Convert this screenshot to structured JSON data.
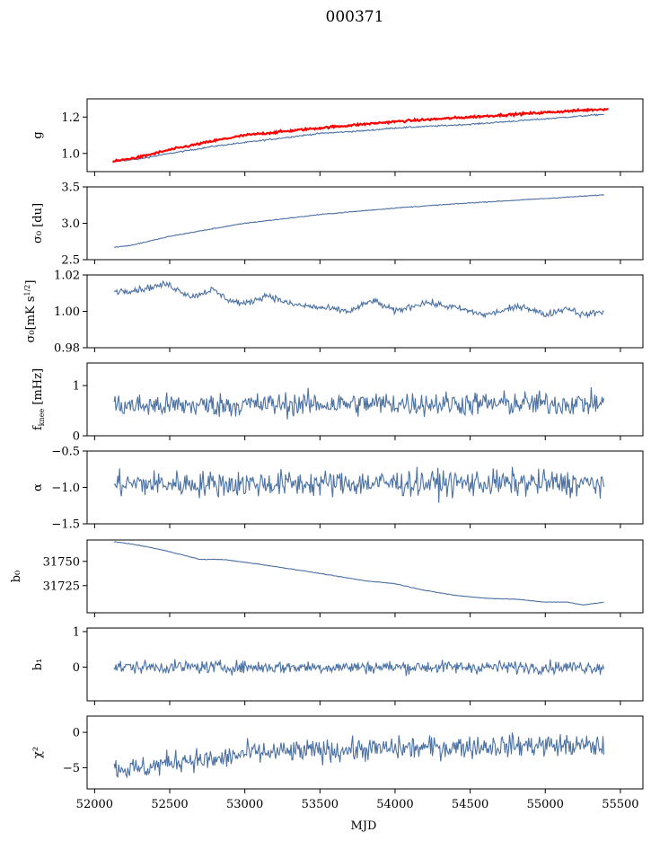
{
  "figure": {
    "title": "000371",
    "xlabel": "MJD"
  },
  "colors": {
    "series": "#4c72a4",
    "fit": "#ff0000",
    "axes": "#000000"
  },
  "xaxis": {
    "lim": [
      51950,
      55650
    ],
    "ticks": [
      52000,
      52500,
      53000,
      53500,
      54000,
      54500,
      55000,
      55500
    ]
  },
  "chart_data": [
    {
      "type": "line",
      "key": "g",
      "ylabel": "g",
      "ylim": [
        0.9,
        1.3
      ],
      "yticks": [
        1.0,
        1.2
      ],
      "yticklabels": [
        "1.0",
        "1.2"
      ],
      "series": [
        {
          "color": "#4c72a4",
          "noise": 0.002,
          "points": [
            [
              52120,
              0.955
            ],
            [
              52300,
              0.97
            ],
            [
              52500,
              1.0
            ],
            [
              52800,
              1.04
            ],
            [
              53000,
              1.06
            ],
            [
              53500,
              1.11
            ],
            [
              53800,
              1.125
            ],
            [
              54000,
              1.14
            ],
            [
              54500,
              1.16
            ],
            [
              55000,
              1.19
            ],
            [
              55390,
              1.215
            ]
          ]
        },
        {
          "color": "#ff0000",
          "noise": 0.003,
          "width": 2.2,
          "points": [
            [
              52120,
              0.955
            ],
            [
              52300,
              0.98
            ],
            [
              52500,
              1.02
            ],
            [
              52800,
              1.07
            ],
            [
              53000,
              1.1
            ],
            [
              53500,
              1.14
            ],
            [
              54000,
              1.175
            ],
            [
              54500,
              1.2
            ],
            [
              55000,
              1.225
            ],
            [
              55420,
              1.245
            ]
          ]
        }
      ]
    },
    {
      "type": "line",
      "key": "sigma_du",
      "ylabel": "σ₀ [du]",
      "ylim": [
        2.5,
        3.5
      ],
      "yticks": [
        2.5,
        3.0,
        3.5
      ],
      "yticklabels": [
        "2.5",
        "3.0",
        "3.5"
      ],
      "series": [
        {
          "color": "#4c72a4",
          "noise": 0.003,
          "points": [
            [
              52130,
              2.67
            ],
            [
              52250,
              2.7
            ],
            [
              52500,
              2.82
            ],
            [
              52800,
              2.93
            ],
            [
              53000,
              3.0
            ],
            [
              53500,
              3.12
            ],
            [
              54000,
              3.21
            ],
            [
              54500,
              3.28
            ],
            [
              55000,
              3.34
            ],
            [
              55390,
              3.39
            ]
          ]
        }
      ]
    },
    {
      "type": "line",
      "key": "sigma_mk",
      "ylabel": "σ₀[mK s^1/2]",
      "ylim": [
        0.98,
        1.02
      ],
      "yticks": [
        0.98,
        1.0,
        1.02
      ],
      "yticklabels": [
        "0.98",
        "1.00",
        "1.02"
      ],
      "series": [
        {
          "color": "#4c72a4",
          "noise": 0.0009,
          "points": [
            [
              52130,
              1.011
            ],
            [
              52300,
              1.012
            ],
            [
              52480,
              1.015
            ],
            [
              52650,
              1.008
            ],
            [
              52780,
              1.012
            ],
            [
              52900,
              1.006
            ],
            [
              53000,
              1.004
            ],
            [
              53150,
              1.009
            ],
            [
              53300,
              1.004
            ],
            [
              53500,
              1.002
            ],
            [
              53700,
              1.0
            ],
            [
              53850,
              1.006
            ],
            [
              54000,
              1.0
            ],
            [
              54200,
              1.005
            ],
            [
              54400,
              1.002
            ],
            [
              54600,
              0.998
            ],
            [
              54850,
              1.003
            ],
            [
              55000,
              0.998
            ],
            [
              55150,
              1.002
            ],
            [
              55250,
              0.998
            ],
            [
              55390,
              1.0
            ]
          ]
        }
      ]
    },
    {
      "type": "line",
      "key": "fknee",
      "ylabel": "f_knee [mHz]",
      "ylim": [
        0,
        1.45
      ],
      "yticks": [
        0,
        1
      ],
      "yticklabels": [
        "0",
        "1"
      ],
      "series": [
        {
          "color": "#4c72a4",
          "noise": 0.12,
          "points": [
            [
              52130,
              0.6
            ],
            [
              52500,
              0.6
            ],
            [
              53000,
              0.62
            ],
            [
              54000,
              0.64
            ],
            [
              55000,
              0.64
            ],
            [
              55390,
              0.65
            ]
          ]
        }
      ]
    },
    {
      "type": "line",
      "key": "alpha",
      "ylabel": "α",
      "ylim": [
        -1.5,
        -0.5
      ],
      "yticks": [
        -1.5,
        -1.0,
        -0.5
      ],
      "yticklabels": [
        "−1.5",
        "−1.0",
        "−0.5"
      ],
      "series": [
        {
          "color": "#4c72a4",
          "noise": 0.09,
          "points": [
            [
              52130,
              -0.95
            ],
            [
              53000,
              -0.95
            ],
            [
              54000,
              -0.94
            ],
            [
              55000,
              -0.94
            ],
            [
              55390,
              -0.95
            ]
          ]
        }
      ]
    },
    {
      "type": "line",
      "key": "b0",
      "ylabel": "b₀",
      "ylim": [
        31697,
        31772
      ],
      "yticks": [
        31725,
        31750
      ],
      "yticklabels": [
        "31725",
        "31750"
      ],
      "series": [
        {
          "color": "#4c72a4",
          "noise": 0.15,
          "points": [
            [
              52130,
              31770
            ],
            [
              52200,
              31769
            ],
            [
              52350,
              31765
            ],
            [
              52500,
              31760
            ],
            [
              52700,
              31752
            ],
            [
              52850,
              31752
            ],
            [
              53000,
              31749
            ],
            [
              53100,
              31747
            ],
            [
              53400,
              31740
            ],
            [
              53600,
              31735
            ],
            [
              53800,
              31730
            ],
            [
              54000,
              31727
            ],
            [
              54200,
              31720
            ],
            [
              54400,
              31715
            ],
            [
              54600,
              31712
            ],
            [
              54800,
              31711
            ],
            [
              55000,
              31708
            ],
            [
              55150,
              31708
            ],
            [
              55250,
              31705
            ],
            [
              55390,
              31708
            ]
          ]
        }
      ]
    },
    {
      "type": "line",
      "key": "b1",
      "ylabel": "b₁",
      "ylim": [
        -0.95,
        1.1
      ],
      "yticks": [
        0,
        1
      ],
      "yticklabels": [
        "0",
        "1"
      ],
      "series": [
        {
          "color": "#4c72a4",
          "noise": 0.09,
          "points": [
            [
              52130,
              0.0
            ],
            [
              53000,
              0.0
            ],
            [
              54000,
              0.0
            ],
            [
              55000,
              0.0
            ],
            [
              55390,
              0.0
            ]
          ]
        }
      ]
    },
    {
      "type": "line",
      "key": "chi2",
      "ylabel": "χ²",
      "ylim": [
        -8,
        2.3
      ],
      "yticks": [
        -5,
        0
      ],
      "yticklabels": [
        "−5",
        "0"
      ],
      "series": [
        {
          "color": "#4c72a4",
          "noise": 0.8,
          "points": [
            [
              52130,
              -5.0
            ],
            [
              52300,
              -5.2
            ],
            [
              52600,
              -3.8
            ],
            [
              52800,
              -4.0
            ],
            [
              53000,
              -3.0
            ],
            [
              53500,
              -2.6
            ],
            [
              54000,
              -2.3
            ],
            [
              54500,
              -2.0
            ],
            [
              55000,
              -1.8
            ],
            [
              55390,
              -2.0
            ]
          ]
        }
      ]
    }
  ]
}
